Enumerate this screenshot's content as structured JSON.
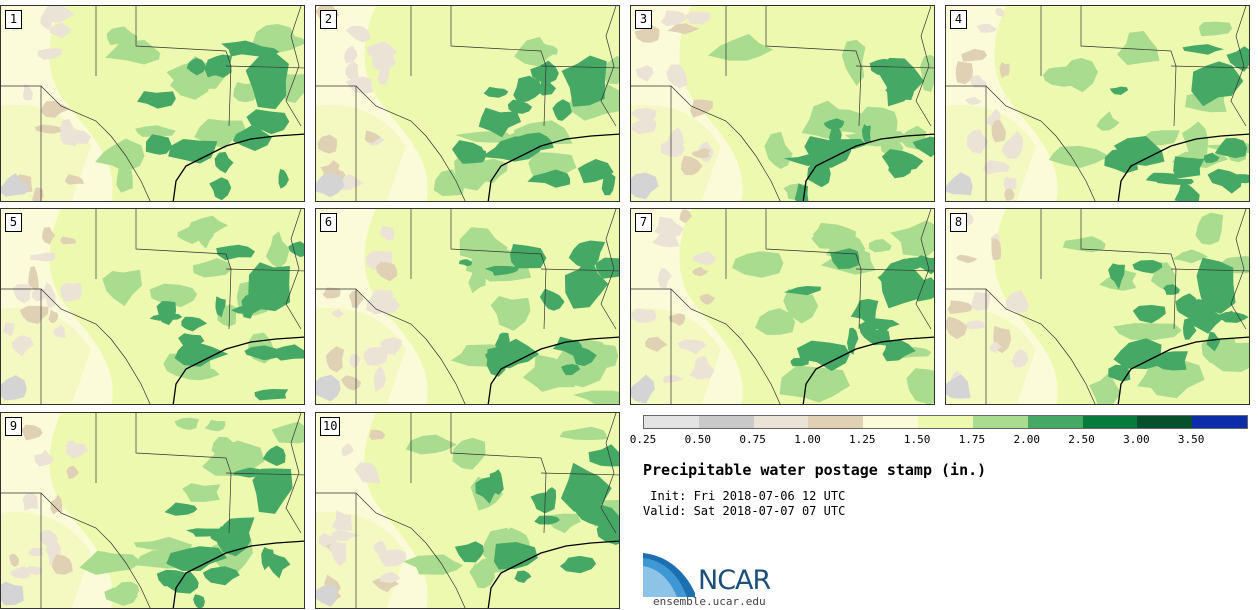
{
  "product_title": "Precipitable water postage stamp (in.)",
  "init_line": " Init: Fri 2018-07-06 12 UTC",
  "valid_line": "Valid: Sat 2018-07-07 07 UTC",
  "site": "ensemble.ucar.edu",
  "logo_text": "NCAR",
  "members": [
    "1",
    "2",
    "3",
    "4",
    "5",
    "6",
    "7",
    "8",
    "9",
    "10"
  ],
  "legend": {
    "bins": [
      {
        "color": "#e3e3e3"
      },
      {
        "color": "#c9c9c9"
      },
      {
        "color": "#ebe3d5"
      },
      {
        "color": "#e0d1b5"
      },
      {
        "color": "#fbfbd9"
      },
      {
        "color": "#eef9b0"
      },
      {
        "color": "#a9dc8e"
      },
      {
        "color": "#45a965"
      },
      {
        "color": "#087a3c"
      },
      {
        "color": "#06502c"
      },
      {
        "color": "#0d2ca8"
      }
    ],
    "tick_labels": [
      "0.25",
      "0.50",
      "0.75",
      "1.00",
      "1.25",
      "1.50",
      "1.75",
      "2.00",
      "2.50",
      "3.00",
      "3.50"
    ]
  },
  "colors": {
    "very_dry": "#e0d1b5",
    "dry": "#ebe3d5",
    "gray": "#d4d4d4",
    "base": "#fbfbd9",
    "light_green": "#eef9b0",
    "mid_green": "#a9dc8e",
    "dark_green": "#45a965",
    "boundary": "#333333"
  }
}
